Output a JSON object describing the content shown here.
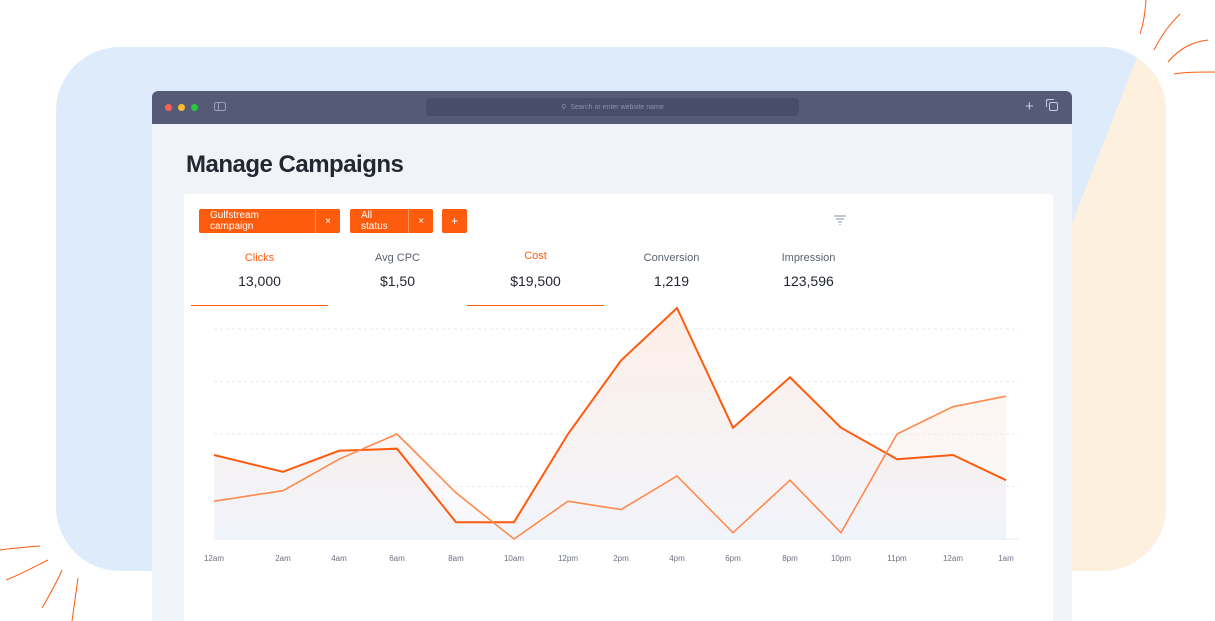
{
  "browser": {
    "url_placeholder": "Search or enter website name"
  },
  "page": {
    "title": "Manage Campaigns"
  },
  "filters": [
    {
      "label": "Gulfstream campaign",
      "remove": "×"
    },
    {
      "label": "All status",
      "remove": "×"
    }
  ],
  "add_filter_label": "+",
  "metrics": [
    {
      "label": "Clicks",
      "value": "13,000",
      "active": true
    },
    {
      "label": "Avg CPC",
      "value": "$1,50",
      "active": false
    },
    {
      "label": "Cost",
      "value": "$19,500",
      "active": true
    },
    {
      "label": "Conversion",
      "value": "1,219",
      "active": false
    },
    {
      "label": "Impression",
      "value": "123,596",
      "active": false
    }
  ],
  "colors": {
    "accent": "#fd5c0e",
    "series_secondary": "#ff8a4c",
    "titlebar": "#555b77"
  },
  "chart_data": {
    "type": "line",
    "x": [
      "12am",
      "2am",
      "4am",
      "6am",
      "8am",
      "10am",
      "12pm",
      "2pm",
      "4pm",
      "6pm",
      "8pm",
      "10pm",
      "11pm",
      "12am",
      "1am"
    ],
    "series": [
      {
        "values": [
          40,
          32,
          42,
          43,
          8,
          8,
          50,
          85,
          110,
          53,
          77,
          53,
          38,
          40,
          28
        ]
      },
      {
        "values": [
          18,
          23,
          38,
          50,
          22,
          0,
          18,
          14,
          30,
          3,
          28,
          3,
          50,
          63,
          68
        ]
      }
    ],
    "ylim": [
      0,
      100
    ],
    "grid": true
  }
}
